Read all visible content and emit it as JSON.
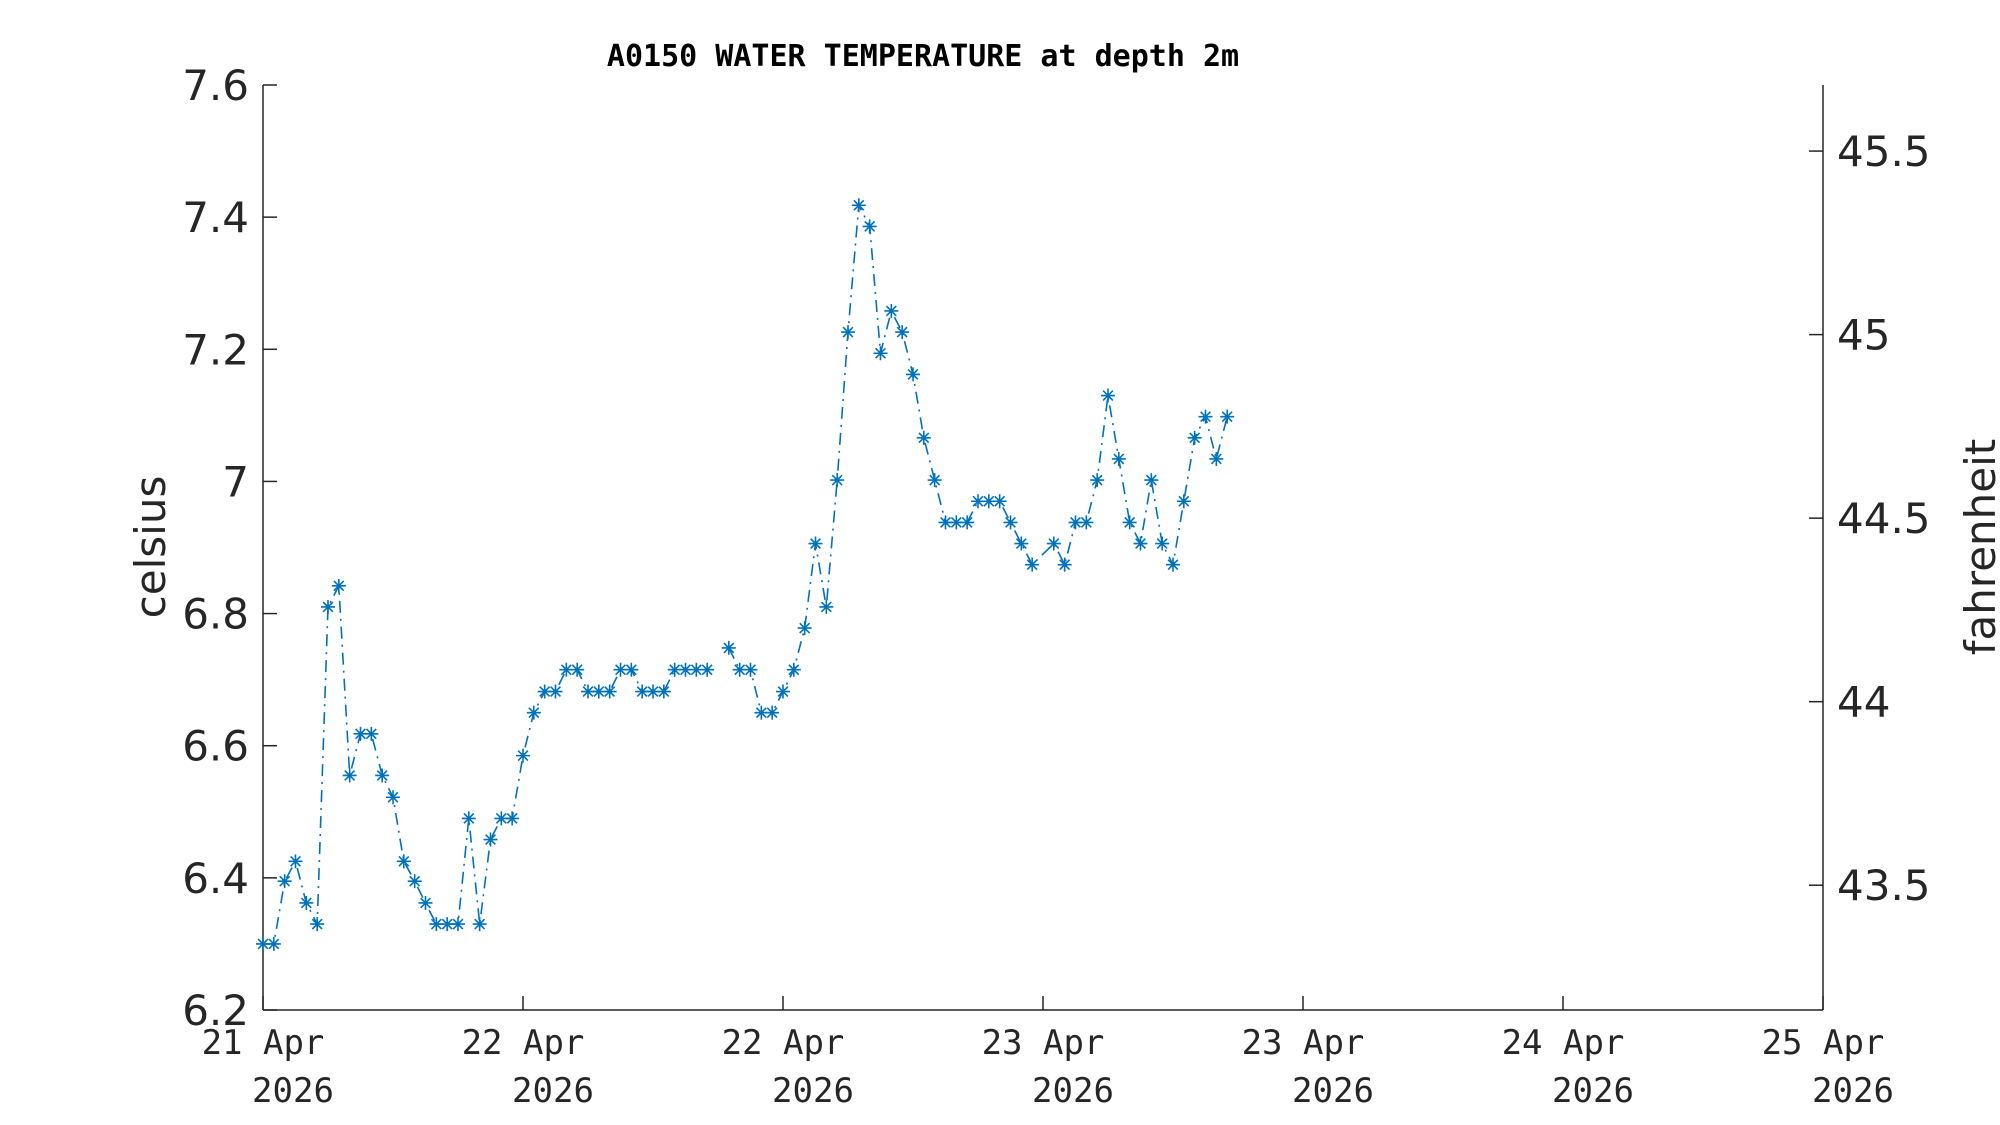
{
  "chart_data": {
    "type": "line",
    "title": "A0150 WATER TEMPERATURE at depth 2m",
    "ylabel": "celsius",
    "ylabel_right": "fahrenheit",
    "ylim": [
      6.2,
      7.6
    ],
    "yticks": [
      "6.2",
      "6.4",
      "6.6",
      "6.8",
      "7",
      "7.2",
      "7.4",
      "7.6"
    ],
    "y2lim": [
      43.16,
      45.68
    ],
    "y2ticks": [
      "43.5",
      "44",
      "44.5",
      "45",
      "45.5"
    ],
    "xlim": [
      "2026-04-21 00:00",
      "2026-04-25 00:00"
    ],
    "xticks": [
      {
        "day": "21 Apr",
        "year": "2026"
      },
      {
        "day": "22 Apr",
        "year": "2026"
      },
      {
        "day": "22 Apr",
        "year": "2026"
      },
      {
        "day": "23 Apr",
        "year": "2026"
      },
      {
        "day": "23 Apr",
        "year": "2026"
      },
      {
        "day": "24 Apr",
        "year": "2026"
      },
      {
        "day": "25 Apr",
        "year": "2026"
      }
    ],
    "line_style": "dash-dot",
    "marker": "asterisk",
    "series": [
      {
        "color": "#0072BD",
        "points": [
          [
            "2026-04-21 00:00",
            6.3
          ],
          [
            "2026-04-21 00:40",
            6.3
          ],
          [
            "2026-04-21 01:20",
            6.395
          ],
          [
            "2026-04-21 02:00",
            6.425
          ],
          [
            "2026-04-21 02:40",
            6.362
          ],
          [
            "2026-04-21 03:20",
            6.33
          ],
          [
            "2026-04-21 04:00",
            6.81
          ],
          [
            "2026-04-21 04:40",
            6.842
          ],
          [
            "2026-04-21 05:20",
            6.555
          ],
          [
            "2026-04-21 06:00",
            6.618
          ],
          [
            "2026-04-21 06:40",
            6.618
          ],
          [
            "2026-04-21 07:20",
            6.555
          ],
          [
            "2026-04-21 08:00",
            6.522
          ],
          [
            "2026-04-21 08:40",
            6.425
          ],
          [
            "2026-04-21 09:20",
            6.395
          ],
          [
            "2026-04-21 10:00",
            6.362
          ],
          [
            "2026-04-21 10:40",
            6.33
          ],
          [
            "2026-04-21 11:20",
            6.33
          ],
          [
            "2026-04-21 12:00",
            6.33
          ],
          [
            "2026-04-21 12:40",
            6.49
          ],
          [
            "2026-04-21 13:20",
            6.33
          ],
          [
            "2026-04-21 14:00",
            6.458
          ],
          [
            "2026-04-21 14:40",
            6.49
          ],
          [
            "2026-04-21 15:20",
            6.49
          ],
          [
            "2026-04-21 16:00",
            6.585
          ],
          [
            "2026-04-21 16:40",
            6.65
          ],
          [
            "2026-04-21 17:20",
            6.682
          ],
          [
            "2026-04-21 18:00",
            6.682
          ],
          [
            "2026-04-21 18:40",
            6.715
          ],
          [
            "2026-04-21 19:20",
            6.715
          ],
          [
            "2026-04-21 20:00",
            6.682
          ],
          [
            "2026-04-21 20:40",
            6.682
          ],
          [
            "2026-04-21 21:20",
            6.682
          ],
          [
            "2026-04-21 22:00",
            6.715
          ],
          [
            "2026-04-21 22:40",
            6.715
          ],
          [
            "2026-04-21 23:20",
            6.682
          ],
          [
            "2026-04-22 00:00",
            6.682
          ],
          [
            "2026-04-22 00:40",
            6.682
          ],
          [
            "2026-04-22 01:20",
            6.715
          ],
          [
            "2026-04-22 02:00",
            6.715
          ],
          [
            "2026-04-22 02:40",
            6.715
          ],
          [
            "2026-04-22 03:20",
            6.715
          ],
          null,
          [
            "2026-04-22 04:40",
            6.748
          ],
          [
            "2026-04-22 05:20",
            6.715
          ],
          [
            "2026-04-22 06:00",
            6.715
          ],
          [
            "2026-04-22 06:40",
            6.65
          ],
          [
            "2026-04-22 07:20",
            6.65
          ],
          [
            "2026-04-22 08:00",
            6.682
          ],
          [
            "2026-04-22 08:40",
            6.715
          ],
          [
            "2026-04-22 09:20",
            6.778
          ],
          [
            "2026-04-22 10:00",
            6.906
          ],
          [
            "2026-04-22 10:40",
            6.81
          ],
          [
            "2026-04-22 11:20",
            7.002
          ],
          [
            "2026-04-22 12:00",
            7.226
          ],
          [
            "2026-04-22 12:40",
            7.418
          ],
          [
            "2026-04-22 13:20",
            7.386
          ],
          [
            "2026-04-22 14:00",
            7.194
          ],
          [
            "2026-04-22 14:40",
            7.258
          ],
          [
            "2026-04-22 15:20",
            7.226
          ],
          [
            "2026-04-22 16:00",
            7.162
          ],
          [
            "2026-04-22 16:40",
            7.066
          ],
          [
            "2026-04-22 17:20",
            7.002
          ],
          [
            "2026-04-22 18:00",
            6.938
          ],
          [
            "2026-04-22 18:40",
            6.938
          ],
          [
            "2026-04-22 19:20",
            6.938
          ],
          [
            "2026-04-22 20:00",
            6.97
          ],
          [
            "2026-04-22 20:40",
            6.97
          ],
          [
            "2026-04-22 21:20",
            6.97
          ],
          [
            "2026-04-22 22:00",
            6.938
          ],
          [
            "2026-04-22 22:40",
            6.906
          ],
          [
            "2026-04-22 23:20",
            6.874
          ],
          [
            "2026-04-23 00:40",
            6.906
          ],
          [
            "2026-04-23 01:20",
            6.874
          ],
          [
            "2026-04-23 02:00",
            6.938
          ],
          [
            "2026-04-23 02:40",
            6.938
          ],
          [
            "2026-04-23 03:20",
            7.002
          ],
          [
            "2026-04-23 04:00",
            7.13
          ],
          [
            "2026-04-23 04:40",
            7.034
          ],
          [
            "2026-04-23 05:20",
            6.938
          ],
          [
            "2026-04-23 06:00",
            6.906
          ],
          [
            "2026-04-23 06:40",
            7.002
          ],
          [
            "2026-04-23 07:20",
            6.906
          ],
          [
            "2026-04-23 08:00",
            6.874
          ],
          [
            "2026-04-23 08:40",
            6.97
          ],
          [
            "2026-04-23 09:20",
            7.066
          ],
          [
            "2026-04-23 10:00",
            7.098
          ],
          [
            "2026-04-23 10:40",
            7.034
          ],
          [
            "2026-04-23 11:20",
            7.098
          ]
        ]
      }
    ]
  }
}
